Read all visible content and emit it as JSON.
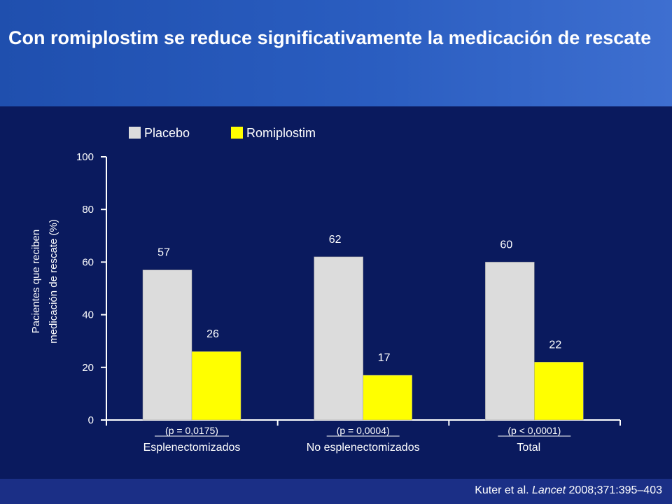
{
  "slide": {
    "title": "Con romiplostim se reduce significativamente la medicación de rescate",
    "citation_prefix": "Kuter et al. ",
    "citation_journal": "Lancet",
    "citation_suffix": " 2008;371:395–403"
  },
  "colors": {
    "background": "#0a1a5e",
    "header": "#2a5dc0",
    "placebo": "#dcdcdc",
    "romiplostim": "#ffff00",
    "axis": "#ffffff"
  },
  "chart_data": {
    "type": "bar",
    "categories": [
      "Esplenectomizados",
      "No esplenectomizados",
      "Total"
    ],
    "p_values": [
      "(p = 0,0175)",
      "(p = 0,0004)",
      "(p < 0,0001)"
    ],
    "series": [
      {
        "name": "Placebo",
        "values": [
          57,
          62,
          60
        ]
      },
      {
        "name": "Romiplostim",
        "values": [
          26,
          17,
          22
        ]
      }
    ],
    "ylabel_line1": "Pacientes que reciben",
    "ylabel_line2": "medicación de rescate (%)",
    "ylim": [
      0,
      100
    ],
    "yticks": [
      0,
      20,
      40,
      60,
      80,
      100
    ],
    "legend_position": "top-left",
    "grid": false
  }
}
